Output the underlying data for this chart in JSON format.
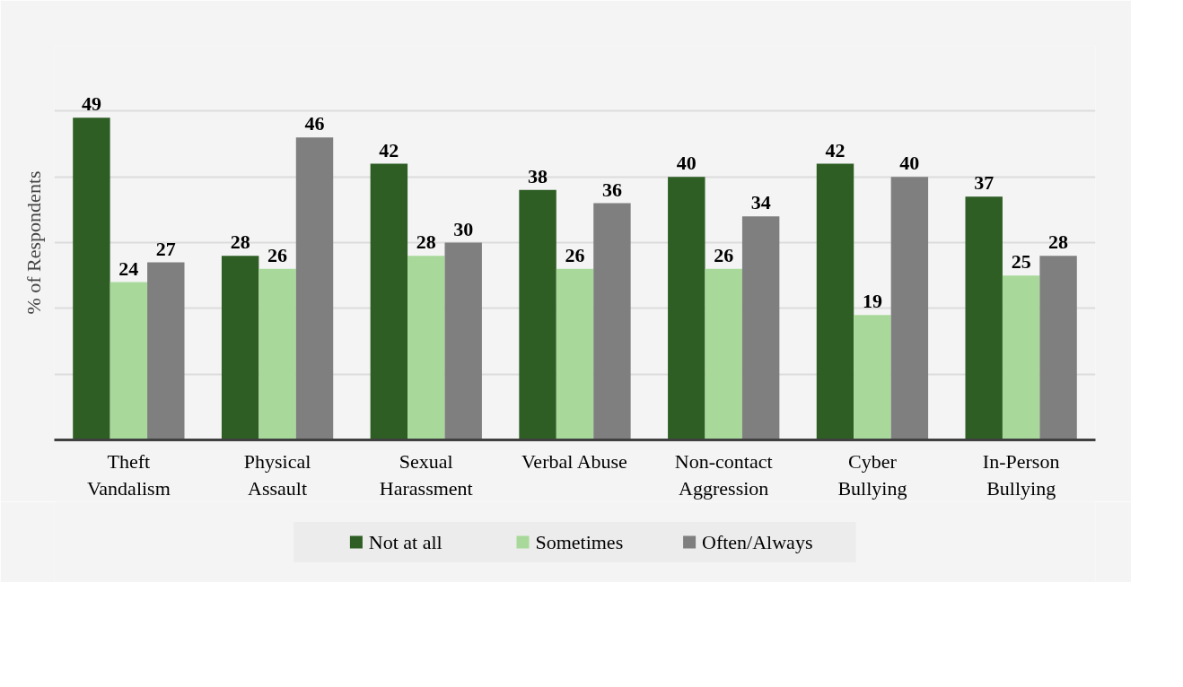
{
  "chart_data": {
    "type": "bar",
    "ylabel": "% of Respondents",
    "categories": [
      "Theft\nVandalism",
      "Physical\nAssault",
      "Sexual\nHarassment",
      "Verbal Abuse",
      "Non-contact\nAggression",
      "Cyber\nBullying",
      "In-Person\nBullying"
    ],
    "series": [
      {
        "name": "Not at all",
        "color": "#2e5e24",
        "values": [
          49,
          28,
          42,
          38,
          40,
          42,
          37
        ]
      },
      {
        "name": "Sometimes",
        "color": "#a8d99a",
        "values": [
          24,
          26,
          28,
          26,
          26,
          19,
          25
        ]
      },
      {
        "name": "Often/Always",
        "color": "#7f7f7f",
        "values": [
          27,
          46,
          30,
          36,
          34,
          40,
          28
        ]
      }
    ],
    "ylim": [
      0,
      60
    ],
    "yticks": [
      {
        "value": 0,
        "label": null
      },
      {
        "value": 10,
        "label": null
      },
      {
        "value": 20,
        "label": null
      },
      {
        "value": 30,
        "label": null
      },
      {
        "value": 40,
        "label": null
      },
      {
        "value": 50,
        "label": null
      },
      {
        "value": 60,
        "label": null
      }
    ],
    "grid": "y",
    "legend": "bottom",
    "tick_labels": "x",
    "data_labels": true
  }
}
